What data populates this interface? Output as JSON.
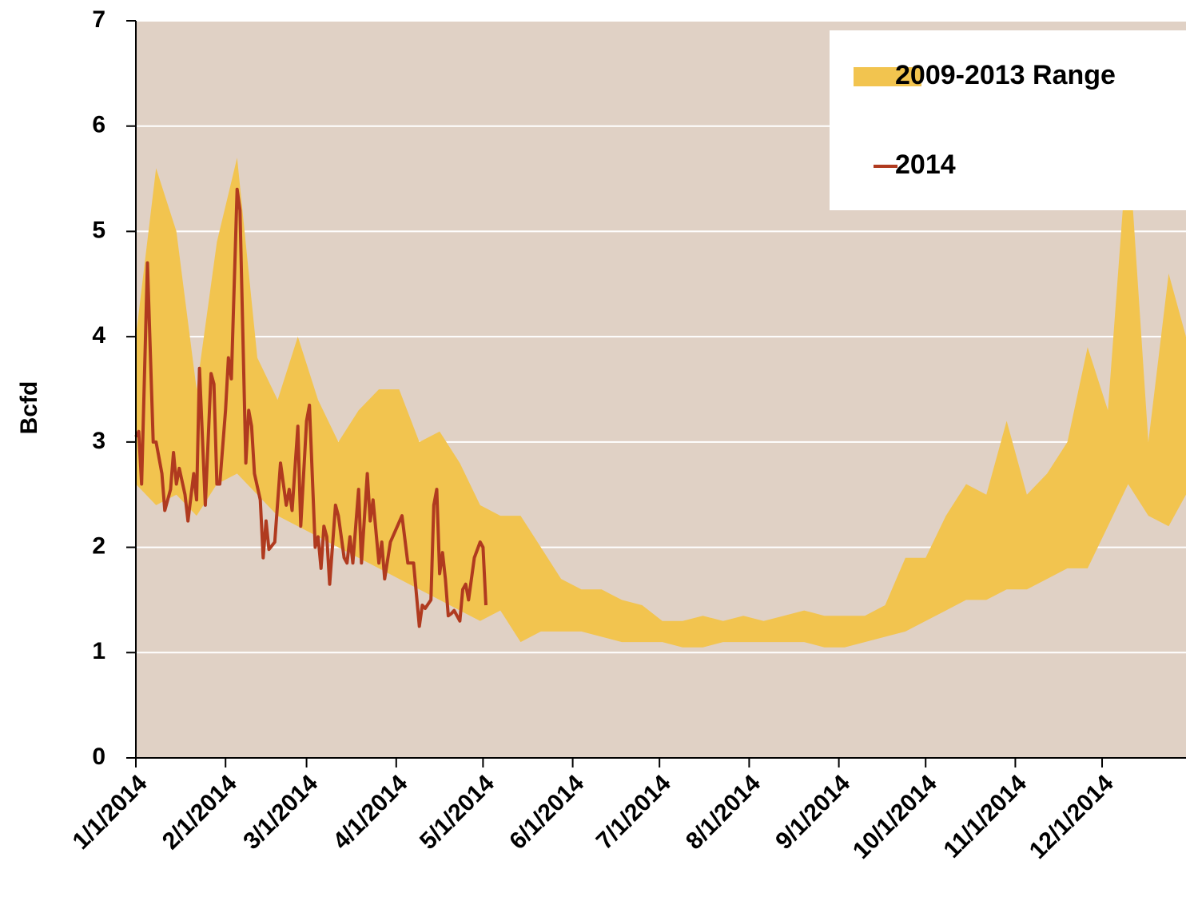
{
  "chart_data": {
    "type": "line",
    "ylabel": "Bcfd",
    "xlim": [
      "1/1/2014",
      "12/30/2014"
    ],
    "xticks": [
      "1/1/2014",
      "2/1/2014",
      "3/1/2014",
      "4/1/2014",
      "5/1/2014",
      "6/1/2014",
      "7/1/2014",
      "8/1/2014",
      "9/1/2014",
      "10/1/2014",
      "11/1/2014",
      "12/1/2014"
    ],
    "ylim": [
      0,
      7
    ],
    "yticks": [
      0,
      1,
      2,
      3,
      4,
      5,
      6,
      7
    ],
    "grid": true,
    "legend": "upper right",
    "background": "#e0d1c5",
    "series": [
      {
        "name": "2009-2013 Range",
        "type": "range",
        "color": "#f2c44f",
        "x": [
          "1/1/2014",
          "1/8/2014",
          "1/15/2014",
          "1/22/2014",
          "1/29/2014",
          "2/5/2014",
          "2/12/2014",
          "2/19/2014",
          "2/26/2014",
          "3/5/2014",
          "3/12/2014",
          "3/19/2014",
          "3/26/2014",
          "4/2/2014",
          "4/9/2014",
          "4/16/2014",
          "4/23/2014",
          "4/30/2014",
          "5/7/2014",
          "5/14/2014",
          "5/21/2014",
          "5/28/2014",
          "6/4/2014",
          "6/11/2014",
          "6/18/2014",
          "6/25/2014",
          "7/2/2014",
          "7/9/2014",
          "7/16/2014",
          "7/23/2014",
          "7/30/2014",
          "8/6/2014",
          "8/13/2014",
          "8/20/2014",
          "8/27/2014",
          "9/3/2014",
          "9/10/2014",
          "9/17/2014",
          "9/24/2014",
          "10/1/2014",
          "10/8/2014",
          "10/15/2014",
          "10/22/2014",
          "10/29/2014",
          "11/5/2014",
          "11/12/2014",
          "11/19/2014",
          "11/26/2014",
          "12/3/2014",
          "12/10/2014",
          "12/17/2014",
          "12/24/2014",
          "12/30/2014"
        ],
        "low": [
          2.6,
          2.4,
          2.5,
          2.3,
          2.6,
          2.7,
          2.5,
          2.3,
          2.2,
          2.1,
          2.0,
          1.9,
          1.8,
          1.7,
          1.6,
          1.5,
          1.4,
          1.3,
          1.4,
          1.1,
          1.2,
          1.2,
          1.2,
          1.15,
          1.1,
          1.1,
          1.1,
          1.05,
          1.05,
          1.1,
          1.1,
          1.1,
          1.1,
          1.1,
          1.05,
          1.05,
          1.1,
          1.15,
          1.2,
          1.3,
          1.4,
          1.5,
          1.5,
          1.6,
          1.6,
          1.7,
          1.8,
          1.8,
          2.2,
          2.6,
          2.3,
          2.2,
          2.5
        ],
        "high": [
          4.0,
          5.6,
          5.0,
          3.5,
          4.9,
          5.7,
          3.8,
          3.4,
          4.0,
          3.4,
          3.0,
          3.3,
          3.5,
          3.5,
          3.0,
          3.1,
          2.8,
          2.4,
          2.3,
          2.3,
          2.0,
          1.7,
          1.6,
          1.6,
          1.5,
          1.45,
          1.3,
          1.3,
          1.35,
          1.3,
          1.35,
          1.3,
          1.35,
          1.4,
          1.35,
          1.35,
          1.35,
          1.45,
          1.9,
          1.9,
          2.3,
          2.6,
          2.5,
          3.2,
          2.5,
          2.7,
          3.0,
          3.9,
          3.3,
          5.9,
          3.0,
          4.6,
          4.0
        ]
      },
      {
        "name": "2014",
        "color": "#b03a1f",
        "x": [
          "1/1/2014",
          "1/2/2014",
          "1/3/2014",
          "1/5/2014",
          "1/7/2014",
          "1/8/2014",
          "1/10/2014",
          "1/11/2014",
          "1/13/2014",
          "1/14/2014",
          "1/15/2014",
          "1/16/2014",
          "1/18/2014",
          "1/19/2014",
          "1/21/2014",
          "1/22/2014",
          "1/23/2014",
          "1/25/2014",
          "1/27/2014",
          "1/28/2014",
          "1/29/2014",
          "1/30/2014",
          "2/1/2014",
          "2/2/2014",
          "2/3/2014",
          "2/5/2014",
          "2/6/2014",
          "2/8/2014",
          "2/9/2014",
          "2/10/2014",
          "2/11/2014",
          "2/13/2014",
          "2/14/2014",
          "2/15/2014",
          "2/16/2014",
          "2/18/2014",
          "2/20/2014",
          "2/22/2014",
          "2/23/2014",
          "2/24/2014",
          "2/26/2014",
          "2/27/2014",
          "3/1/2014",
          "3/2/2014",
          "3/4/2014",
          "3/5/2014",
          "3/6/2014",
          "3/7/2014",
          "3/8/2014",
          "3/9/2014",
          "3/11/2014",
          "3/12/2014",
          "3/14/2014",
          "3/15/2014",
          "3/16/2014",
          "3/17/2014",
          "3/19/2014",
          "3/20/2014",
          "3/22/2014",
          "3/23/2014",
          "3/24/2014",
          "3/26/2014",
          "3/27/2014",
          "3/28/2014",
          "3/30/2014",
          "4/3/2014",
          "4/5/2014",
          "4/7/2014",
          "4/9/2014",
          "4/10/2014",
          "4/11/2014",
          "4/13/2014",
          "4/14/2014",
          "4/15/2014",
          "4/16/2014",
          "4/17/2014",
          "4/18/2014",
          "4/19/2014",
          "4/20/2014",
          "4/21/2014",
          "4/23/2014",
          "4/24/2014",
          "4/25/2014",
          "4/26/2014",
          "4/28/2014",
          "4/30/2014",
          "5/1/2014",
          "5/2/2014"
        ],
        "values": [
          3.05,
          3.1,
          2.6,
          4.7,
          3.0,
          3.0,
          2.7,
          2.35,
          2.55,
          2.9,
          2.6,
          2.75,
          2.5,
          2.25,
          2.7,
          2.45,
          3.7,
          2.4,
          3.65,
          3.55,
          2.6,
          2.6,
          3.3,
          3.8,
          3.6,
          5.4,
          5.2,
          2.8,
          3.3,
          3.15,
          2.7,
          2.45,
          1.9,
          2.25,
          1.98,
          2.05,
          2.8,
          2.4,
          2.55,
          2.35,
          3.15,
          2.2,
          3.2,
          3.35,
          2.0,
          2.1,
          1.8,
          2.2,
          2.1,
          1.65,
          2.4,
          2.3,
          1.9,
          1.85,
          2.1,
          1.85,
          2.55,
          1.85,
          2.7,
          2.25,
          2.45,
          1.85,
          2.05,
          1.7,
          2.05,
          2.3,
          1.85,
          1.85,
          1.25,
          1.45,
          1.42,
          1.5,
          2.4,
          2.55,
          1.75,
          1.95,
          1.7,
          1.35,
          1.37,
          1.4,
          1.3,
          1.6,
          1.65,
          1.5,
          1.9,
          2.05,
          2.0,
          1.45
        ]
      }
    ]
  }
}
